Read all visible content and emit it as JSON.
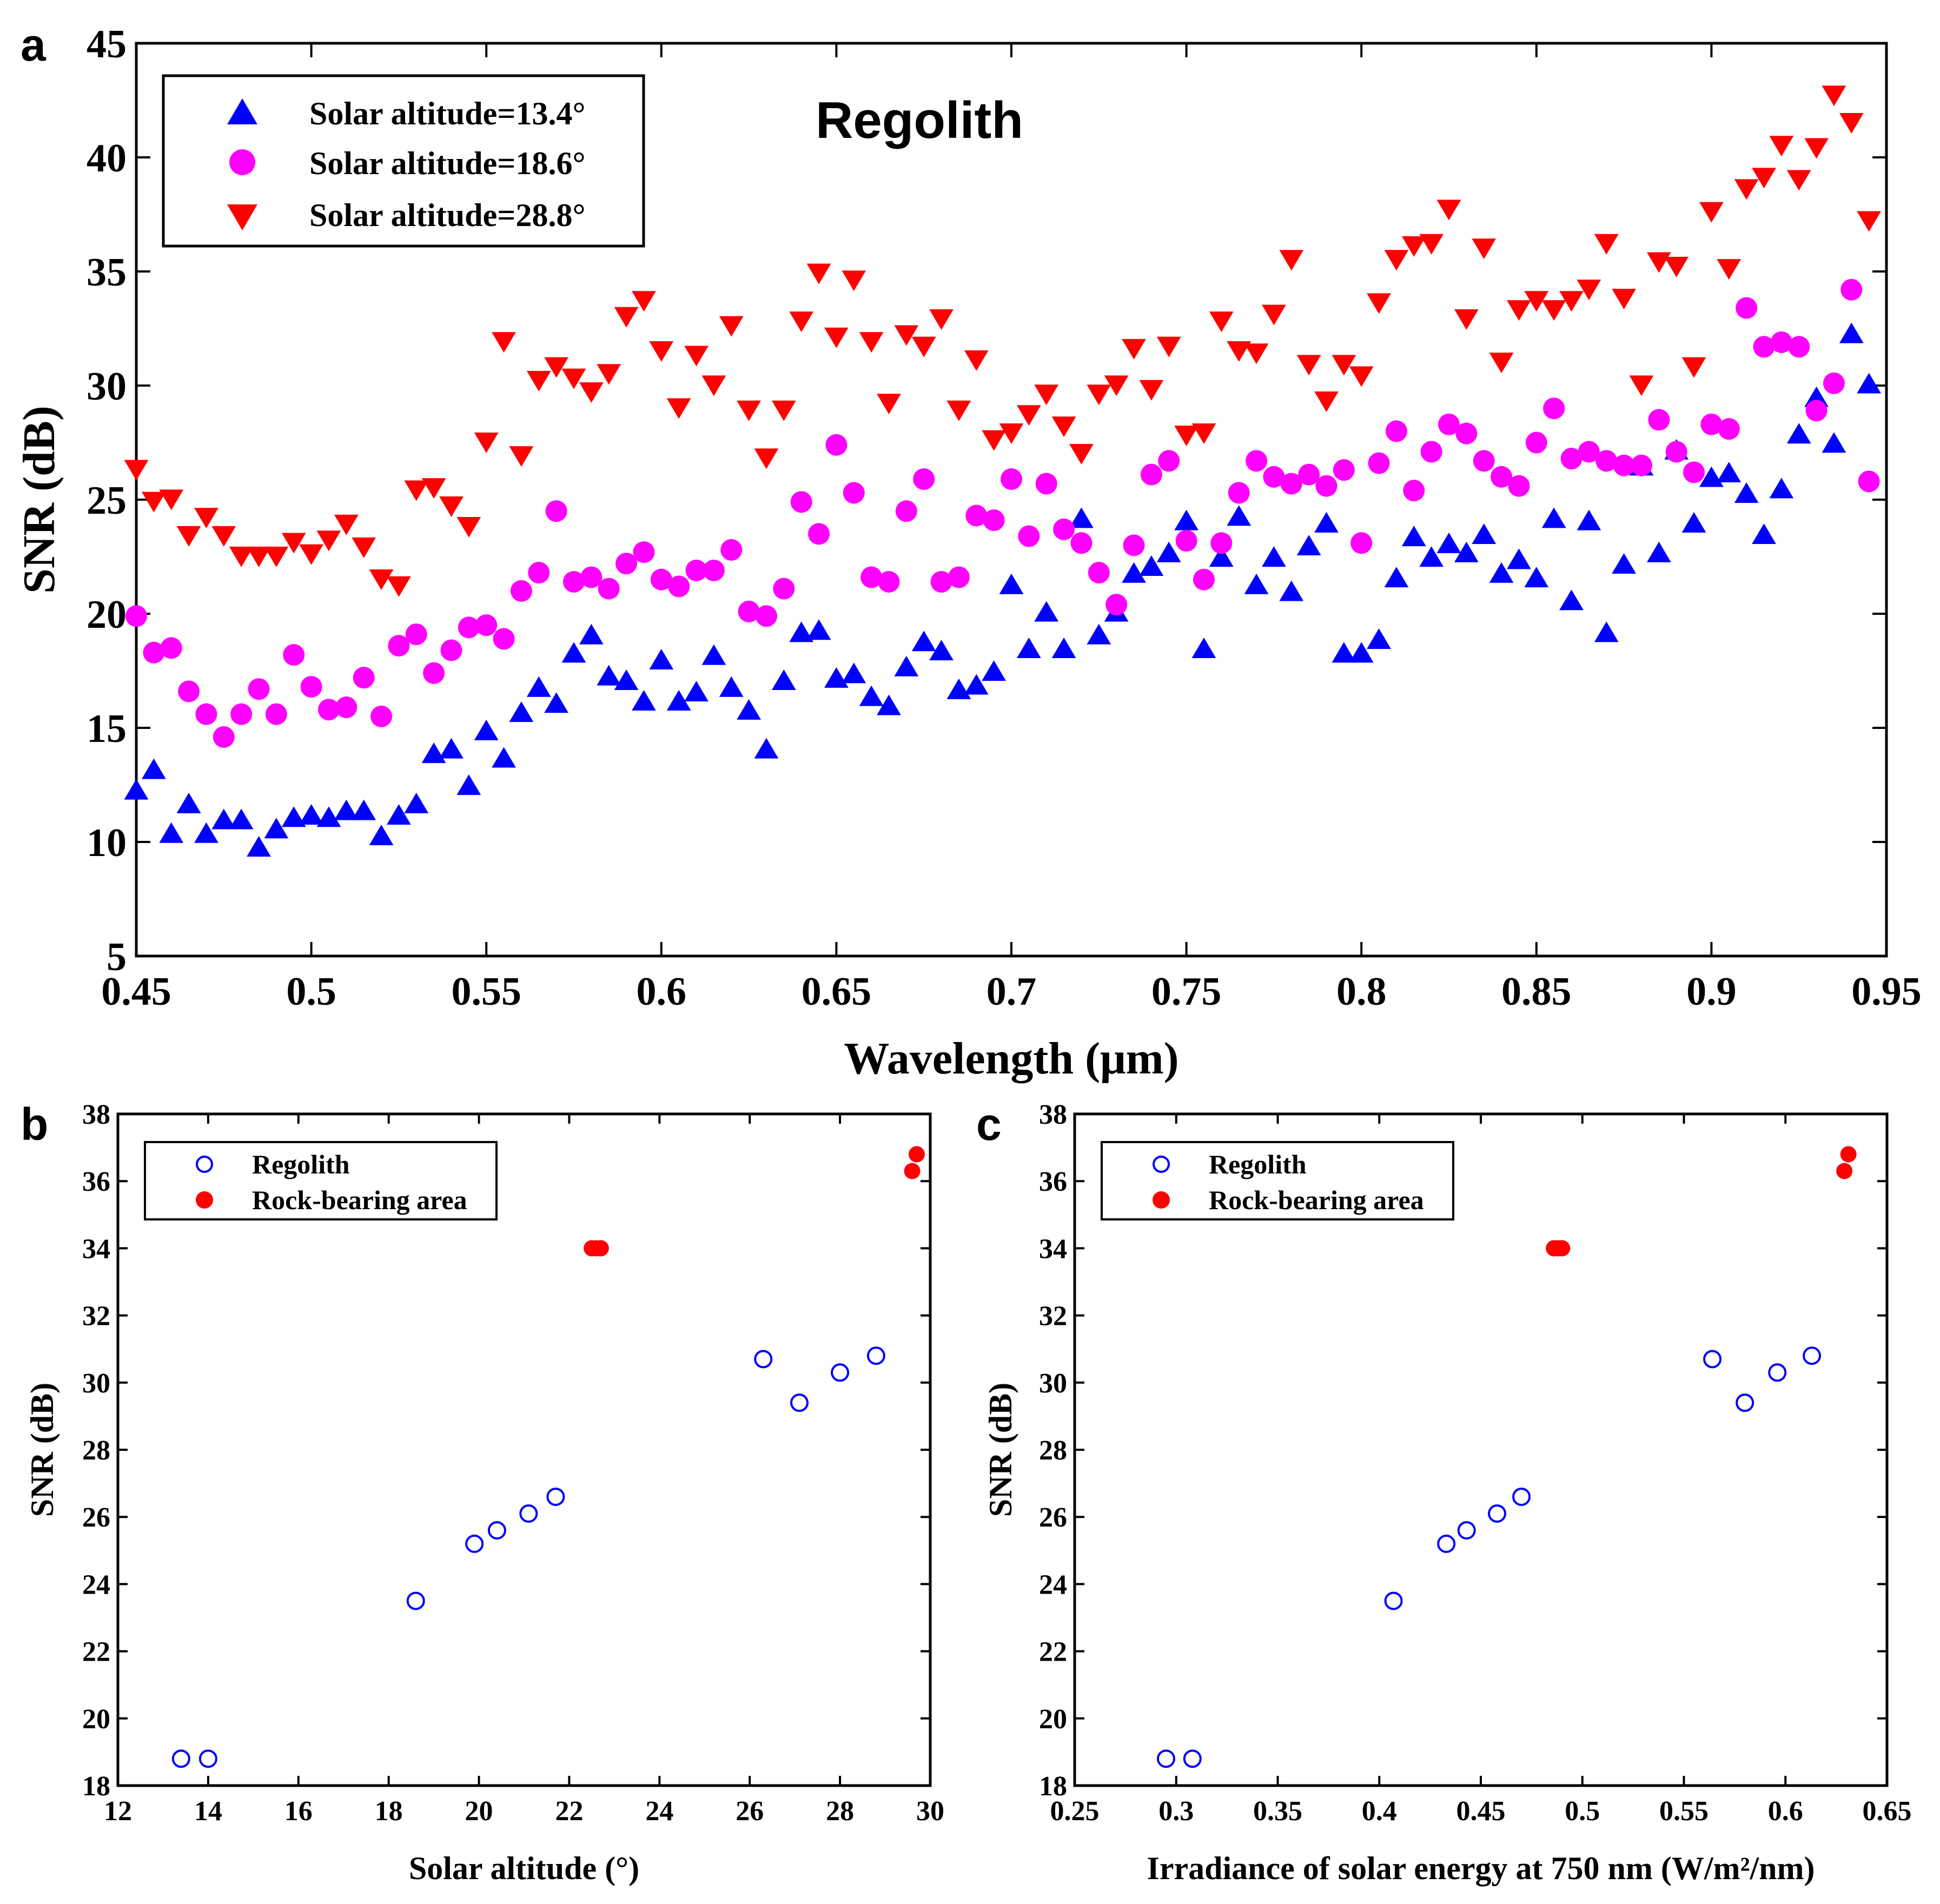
{
  "chart_data": [
    {
      "panel": "a",
      "type": "scatter",
      "title": "Regolith",
      "xlabel": "Wavelength (μm)",
      "ylabel": "SNR (dB)",
      "xlim": [
        0.45,
        0.95
      ],
      "ylim": [
        5,
        45
      ],
      "xticks": [
        "0.45",
        "0.5",
        "0.55",
        "0.6",
        "0.65",
        "0.7",
        "0.75",
        "0.8",
        "0.85",
        "0.9",
        "0.95"
      ],
      "yticks": [
        "5",
        "10",
        "15",
        "20",
        "25",
        "30",
        "35",
        "40",
        "45"
      ],
      "legend_position": "top-left",
      "x": [
        0.45,
        0.455,
        0.46,
        0.465,
        0.47,
        0.475,
        0.48,
        0.485,
        0.49,
        0.495,
        0.5,
        0.505,
        0.51,
        0.515,
        0.52,
        0.525,
        0.53,
        0.535,
        0.54,
        0.545,
        0.55,
        0.555,
        0.56,
        0.565,
        0.57,
        0.575,
        0.58,
        0.585,
        0.59,
        0.595,
        0.6,
        0.605,
        0.61,
        0.615,
        0.62,
        0.625,
        0.63,
        0.635,
        0.64,
        0.645,
        0.65,
        0.655,
        0.66,
        0.665,
        0.67,
        0.675,
        0.68,
        0.685,
        0.69,
        0.695,
        0.7,
        0.705,
        0.71,
        0.715,
        0.72,
        0.725,
        0.73,
        0.735,
        0.74,
        0.745,
        0.75,
        0.755,
        0.76,
        0.765,
        0.77,
        0.775,
        0.78,
        0.785,
        0.79,
        0.795,
        0.8,
        0.805,
        0.81,
        0.815,
        0.82,
        0.825,
        0.83,
        0.835,
        0.84,
        0.845,
        0.85,
        0.855,
        0.86,
        0.865,
        0.87,
        0.875,
        0.88,
        0.885,
        0.89,
        0.895,
        0.9,
        0.905,
        0.91,
        0.915,
        0.92,
        0.925,
        0.93,
        0.935,
        0.94,
        0.945
      ],
      "series": [
        {
          "name": "Solar altitude=13.4°",
          "marker": "triangle-up",
          "color": "#0000ff",
          "values": [
            12.2,
            13.1,
            10.3,
            11.6,
            10.3,
            10.9,
            10.9,
            9.7,
            10.5,
            11.0,
            11.1,
            11.0,
            11.3,
            11.3,
            10.2,
            11.1,
            11.6,
            13.8,
            14.0,
            12.4,
            14.8,
            13.6,
            15.6,
            16.7,
            16.0,
            18.2,
            19.0,
            17.2,
            17.0,
            16.1,
            17.9,
            16.1,
            16.5,
            18.1,
            16.7,
            15.7,
            14.0,
            17.0,
            19.1,
            19.2,
            17.1,
            17.3,
            16.3,
            15.9,
            17.6,
            18.7,
            18.3,
            16.6,
            16.8,
            17.4,
            21.2,
            18.4,
            20.0,
            18.4,
            24.1,
            19.0,
            20.0,
            21.7,
            22.0,
            22.6,
            24.0,
            18.4,
            22.4,
            24.2,
            21.2,
            22.4,
            20.9,
            22.9,
            23.9,
            18.2,
            18.2,
            18.8,
            21.5,
            23.3,
            22.4,
            23.0,
            22.6,
            23.4,
            21.7,
            22.3,
            21.5,
            24.1,
            20.5,
            24.0,
            19.1,
            22.1,
            26.4,
            22.6,
            27.1,
            23.9,
            25.9,
            26.1,
            25.2,
            23.4,
            25.4,
            27.8,
            29.4,
            27.4,
            32.2,
            30.0
          ]
        },
        {
          "name": "Solar altitude=18.6°",
          "marker": "circle",
          "color": "#ff00ff",
          "values": [
            19.9,
            18.3,
            18.5,
            16.6,
            15.6,
            14.6,
            15.6,
            16.7,
            15.6,
            18.2,
            16.8,
            15.8,
            15.9,
            17.2,
            15.5,
            18.6,
            19.1,
            17.4,
            18.4,
            19.4,
            19.5,
            18.9,
            21.0,
            21.8,
            24.5,
            21.4,
            21.6,
            21.1,
            22.2,
            22.7,
            21.5,
            21.2,
            21.9,
            21.9,
            22.8,
            20.1,
            19.9,
            21.1,
            24.9,
            23.5,
            27.4,
            25.3,
            21.6,
            21.4,
            24.5,
            25.9,
            21.4,
            21.6,
            24.3,
            24.1,
            25.9,
            23.4,
            25.7,
            23.7,
            23.1,
            21.8,
            20.4,
            23.0,
            26.1,
            26.7,
            23.2,
            21.5,
            23.1,
            25.3,
            26.7,
            26.0,
            25.7,
            26.1,
            25.6,
            26.3,
            23.1,
            26.6,
            28.0,
            25.4,
            27.1,
            28.3,
            27.9,
            26.7,
            26.0,
            25.6,
            27.5,
            29.0,
            26.8,
            27.1,
            26.7,
            26.5,
            26.5,
            28.5,
            27.1,
            26.2,
            28.3,
            28.1,
            33.4,
            31.7,
            31.9,
            31.7,
            28.9,
            30.1,
            34.2,
            25.8
          ]
        },
        {
          "name": "Solar altitude=28.8°",
          "marker": "triangle-down",
          "color": "#ff0000",
          "values": [
            26.4,
            25.0,
            25.1,
            23.5,
            24.3,
            23.5,
            22.6,
            22.6,
            22.6,
            23.2,
            22.7,
            23.3,
            24.0,
            23.0,
            21.6,
            21.3,
            25.5,
            25.6,
            24.8,
            23.9,
            27.6,
            32.0,
            27.0,
            30.3,
            30.9,
            30.4,
            29.8,
            30.6,
            33.1,
            33.8,
            31.6,
            29.1,
            31.4,
            30.1,
            32.7,
            29.0,
            26.9,
            29.0,
            32.9,
            35.0,
            32.2,
            34.7,
            32.0,
            29.3,
            32.3,
            31.8,
            33.0,
            29.0,
            31.2,
            27.7,
            28.0,
            28.8,
            29.7,
            28.3,
            27.1,
            29.7,
            30.1,
            31.7,
            29.9,
            31.8,
            27.9,
            28.0,
            32.9,
            31.6,
            31.5,
            33.2,
            35.6,
            31.0,
            29.4,
            31.0,
            30.5,
            33.7,
            35.6,
            36.2,
            36.3,
            37.8,
            33.0,
            36.1,
            31.1,
            33.4,
            33.8,
            33.4,
            33.8,
            34.3,
            36.3,
            33.9,
            30.1,
            35.5,
            35.3,
            30.9,
            37.7,
            35.2,
            38.7,
            39.2,
            40.6,
            39.1,
            40.5,
            42.8,
            41.6,
            37.3
          ]
        }
      ]
    },
    {
      "panel": "b",
      "type": "scatter",
      "xlabel": "Solar altitude (°)",
      "ylabel": "SNR (dB)",
      "xlim": [
        12,
        30
      ],
      "ylim": [
        18,
        38
      ],
      "xticks": [
        "12",
        "14",
        "16",
        "18",
        "20",
        "22",
        "24",
        "26",
        "28",
        "30"
      ],
      "yticks": [
        "18",
        "20",
        "22",
        "24",
        "26",
        "28",
        "30",
        "32",
        "34",
        "36",
        "38"
      ],
      "legend_position": "top-left",
      "series": [
        {
          "name": "Regolith",
          "marker": "open-circle",
          "color": "#0000ff",
          "x": [
            13.4,
            14.0,
            18.6,
            19.9,
            20.4,
            21.1,
            21.7,
            26.3,
            27.1,
            28.0,
            28.8
          ],
          "y": [
            18.8,
            18.8,
            23.5,
            25.2,
            25.6,
            26.1,
            26.6,
            30.7,
            29.4,
            30.3,
            30.8
          ]
        },
        {
          "name": "Rock-bearing area",
          "marker": "filled-circle",
          "color": "#ff0000",
          "x": [
            22.5,
            22.6,
            22.7,
            29.6,
            29.7
          ],
          "y": [
            34.0,
            34.0,
            34.0,
            36.3,
            36.8
          ]
        }
      ]
    },
    {
      "panel": "c",
      "type": "scatter",
      "xlabel": "Irradiance of solar energy at 750 nm (W/m²/nm)",
      "ylabel": "SNR (dB)",
      "xlim": [
        0.25,
        0.65
      ],
      "ylim": [
        18,
        38
      ],
      "xticks": [
        "0.25",
        "0.3",
        "0.35",
        "0.4",
        "0.45",
        "0.5",
        "0.55",
        "0.6",
        "0.65"
      ],
      "yticks": [
        "18",
        "20",
        "22",
        "24",
        "26",
        "28",
        "30",
        "32",
        "34",
        "36",
        "38"
      ],
      "legend_position": "top-left",
      "series": [
        {
          "name": "Regolith",
          "marker": "open-circle",
          "color": "#0000ff",
          "x": [
            0.295,
            0.308,
            0.407,
            0.433,
            0.443,
            0.458,
            0.47,
            0.564,
            0.58,
            0.596,
            0.613
          ],
          "y": [
            18.8,
            18.8,
            23.5,
            25.2,
            25.6,
            26.1,
            26.6,
            30.7,
            29.4,
            30.3,
            30.8
          ]
        },
        {
          "name": "Rock-bearing area",
          "marker": "filled-circle",
          "color": "#ff0000",
          "x": [
            0.486,
            0.488,
            0.49,
            0.629,
            0.631
          ],
          "y": [
            34.0,
            34.0,
            34.0,
            36.3,
            36.8
          ]
        }
      ]
    }
  ],
  "labels": {
    "panel_a": "a",
    "panel_b": "b",
    "panel_c": "c"
  }
}
